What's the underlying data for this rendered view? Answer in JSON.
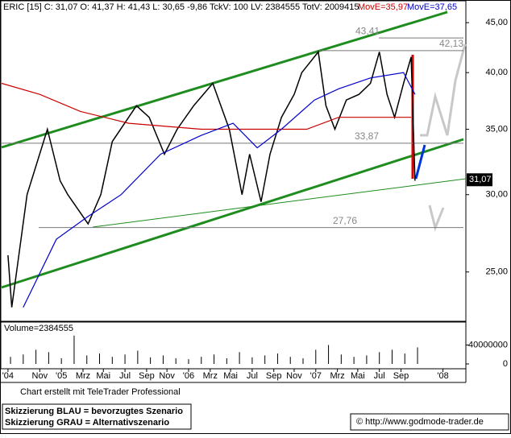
{
  "header": {
    "quote": "ERIC [15] C: 31,07 O: 41,37 H: 41,43 L: 30,65 -9,86 TckV: 100 LV: 2384555 TotV: 2009415"
  },
  "chart_data": [
    {
      "type": "line",
      "log_scale": true,
      "xlim": [
        2004.53,
        2008.18
      ],
      "ylim": [
        22.3,
        47.2
      ],
      "xticks": [
        {
          "value": 2004.58,
          "label": "'04"
        },
        {
          "value": 2004.83,
          "label": "Nov"
        },
        {
          "value": 2005.0,
          "label": "'05"
        },
        {
          "value": 2005.17,
          "label": "Mrz"
        },
        {
          "value": 2005.33,
          "label": "Mai"
        },
        {
          "value": 2005.5,
          "label": "Jul"
        },
        {
          "value": 2005.67,
          "label": "Sep"
        },
        {
          "value": 2005.83,
          "label": "Nov"
        },
        {
          "value": 2006.0,
          "label": "'06"
        },
        {
          "value": 2006.17,
          "label": "Mrz"
        },
        {
          "value": 2006.33,
          "label": "Mai"
        },
        {
          "value": 2006.5,
          "label": "Jul"
        },
        {
          "value": 2006.67,
          "label": "Sep"
        },
        {
          "value": 2006.83,
          "label": "Nov"
        },
        {
          "value": 2007.0,
          "label": "'07"
        },
        {
          "value": 2007.17,
          "label": "Mrz"
        },
        {
          "value": 2007.33,
          "label": "Mai"
        },
        {
          "value": 2007.5,
          "label": "Jul"
        },
        {
          "value": 2007.67,
          "label": "Sep"
        },
        {
          "value": 2008.0,
          "label": "'08"
        }
      ],
      "yticks": [
        {
          "value": 25,
          "label": "25,00"
        },
        {
          "value": 30,
          "label": "30,00"
        },
        {
          "value": 35,
          "label": "35,00"
        },
        {
          "value": 40,
          "label": "40,00"
        },
        {
          "value": 45,
          "label": "45,00"
        }
      ],
      "series": [
        {
          "color": "#000000",
          "x": [
            2004.58,
            2004.61,
            2004.73,
            2004.89,
            2004.99,
            2005.05,
            2005.21,
            2005.31,
            2005.4,
            2005.59,
            2005.69,
            2005.81,
            2005.91,
            2006.04,
            2006.19,
            2006.32,
            2006.42,
            2006.48,
            2006.57,
            2006.64,
            2006.73,
            2006.83,
            2006.89,
            2007.02,
            2007.08,
            2007.15,
            2007.24,
            2007.34,
            2007.43,
            2007.5,
            2007.56,
            2007.62,
            2007.69,
            2007.75,
            2007.78
          ],
          "values": [
            26,
            23,
            30,
            35,
            31,
            30,
            28,
            30,
            34,
            37,
            36,
            33,
            35,
            37,
            39,
            35,
            30,
            33,
            29.5,
            33,
            36,
            38,
            40,
            42,
            37,
            35,
            37.5,
            38,
            39,
            42,
            38,
            36,
            39,
            41.5,
            31
          ]
        },
        {
          "name": "MovE=35,97",
          "color": "#cc0000",
          "x": [
            2004.53,
            2004.83,
            2005.15,
            2005.53,
            2006.1,
            2006.61,
            2006.93,
            2007.18,
            2007.75
          ],
          "values": [
            39,
            38,
            36.5,
            35.5,
            35,
            35,
            35,
            36,
            36
          ]
        },
        {
          "name": "MovE=37,65",
          "color": "#0000cc",
          "x": [
            2004.7,
            2004.96,
            2005.21,
            2005.47,
            2005.78,
            2006.1,
            2006.35,
            2006.54,
            2006.73,
            2006.99,
            2007.18,
            2007.43,
            2007.69,
            2007.78
          ],
          "values": [
            23,
            27,
            28.5,
            30,
            33,
            34.5,
            35.5,
            33.5,
            35,
            37.5,
            38.5,
            39.5,
            40,
            38
          ]
        }
      ],
      "levels": [
        {
          "value": 43.41,
          "label": "43,41"
        },
        {
          "value": 42.13,
          "label": "42,13"
        },
        {
          "value": 33.87,
          "label": "33,87"
        },
        {
          "value": 27.76,
          "label": "27,76"
        }
      ],
      "last": {
        "value": 31.07,
        "label": "31,07"
      }
    },
    {
      "type": "bar",
      "title": "Volume=2384555",
      "color": "#000000",
      "xlim": [
        2004.53,
        2008.18
      ],
      "ylim": [
        0,
        80000000
      ],
      "yticks": [
        0,
        40000000
      ],
      "x": [
        2004.6,
        2004.7,
        2004.8,
        2004.9,
        2005.0,
        2005.1,
        2005.2,
        2005.3,
        2005.4,
        2005.5,
        2005.6,
        2005.7,
        2005.8,
        2005.9,
        2006.0,
        2006.1,
        2006.2,
        2006.3,
        2006.4,
        2006.5,
        2006.6,
        2006.7,
        2006.8,
        2006.9,
        2007.0,
        2007.1,
        2007.2,
        2007.3,
        2007.4,
        2007.5,
        2007.6,
        2007.7,
        2007.8
      ],
      "values": [
        15000000,
        20000000,
        30000000,
        25000000,
        12000000,
        60000000,
        18000000,
        22000000,
        15000000,
        20000000,
        28000000,
        14000000,
        18000000,
        12000000,
        10000000,
        15000000,
        20000000,
        12000000,
        25000000,
        14000000,
        18000000,
        22000000,
        15000000,
        12000000,
        30000000,
        40000000,
        20000000,
        15000000,
        18000000,
        25000000,
        30000000,
        22000000,
        35000000
      ]
    }
  ],
  "footer": {
    "credit": "Chart erstellt mit TeleTrader Professional",
    "blue": "Skizzierung BLAU = bevorzugtes Szenario",
    "grey": "Skizzierung GRAU = Alternativszenario",
    "copyright": "© http://www.godmode-trader.de"
  }
}
